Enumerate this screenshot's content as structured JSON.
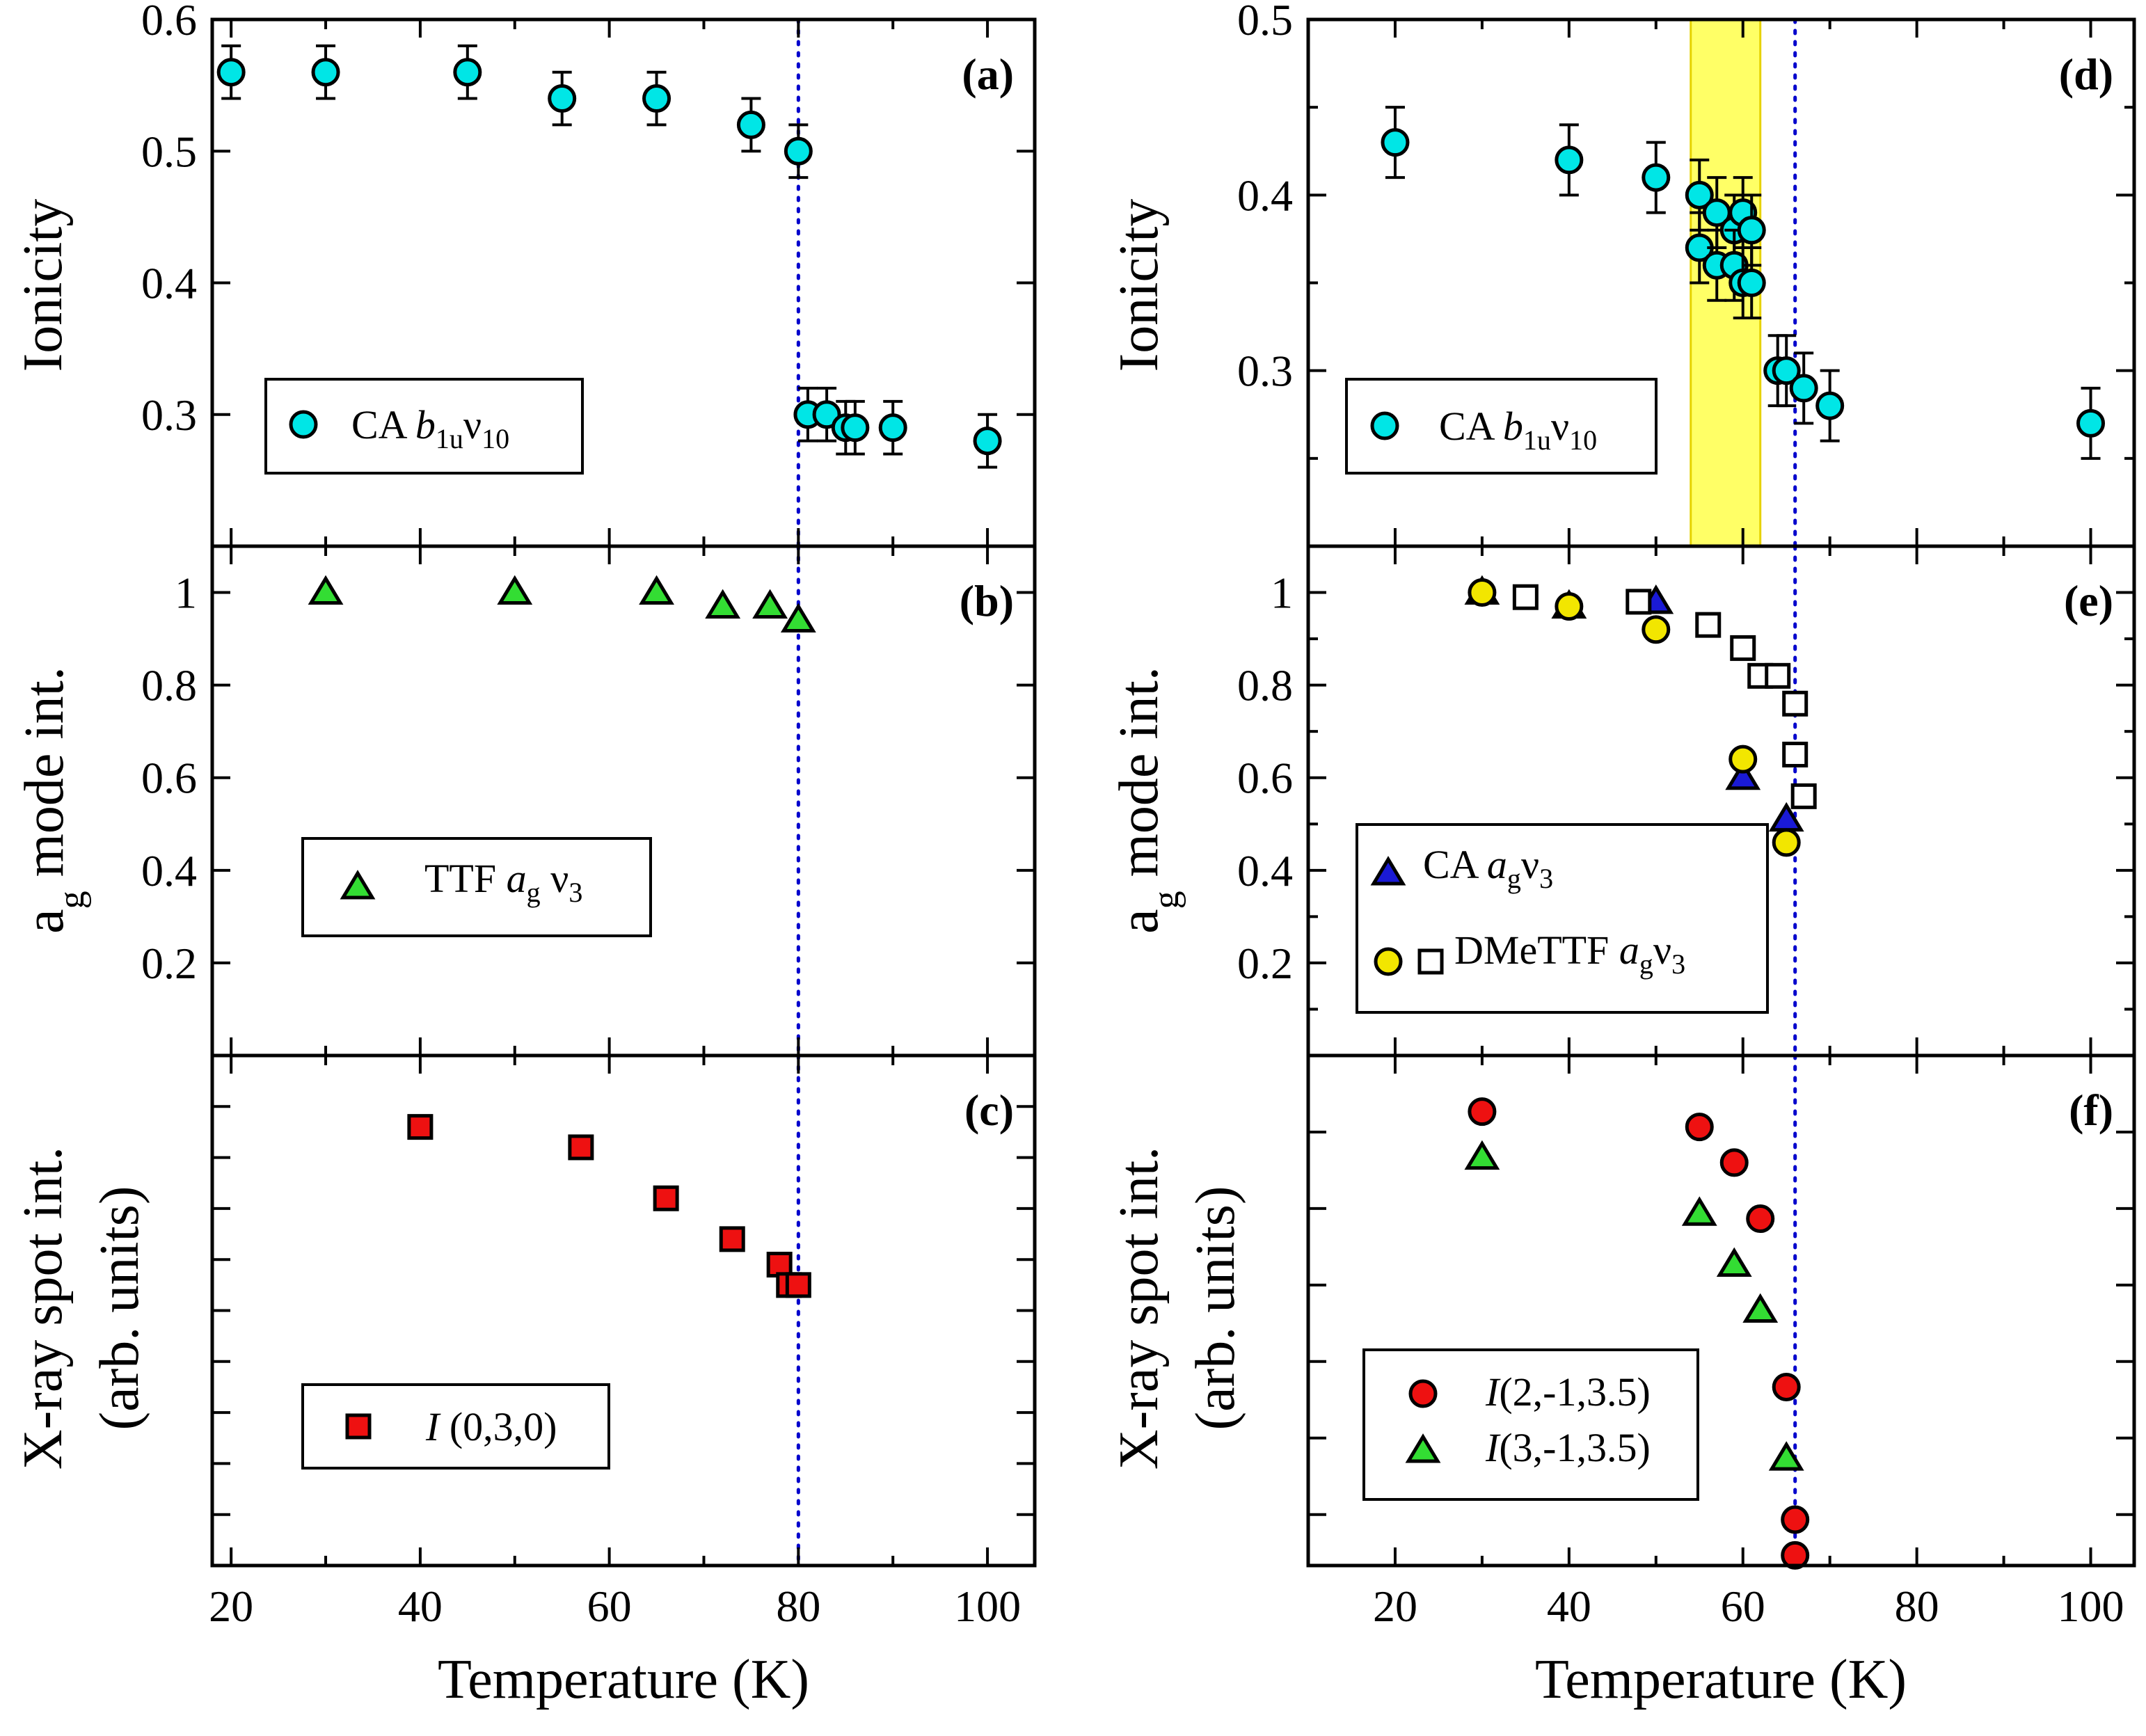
{
  "figure": {
    "xlabel": "Temperature (K)",
    "ylabels": {
      "ionicity": "Ionicity",
      "ag_main": "a",
      "ag_sub": "g",
      "ag_rest": " mode int.",
      "xray_line1": "X-ray spot int.",
      "xray_line2": "(arb. units)"
    },
    "legend_text": {
      "a": {
        "pre": "CA ",
        "ital": "b",
        "sub": "1u",
        "nu": "ν",
        "nusub": "10"
      },
      "b": {
        "pre": "TTF ",
        "ital": "a",
        "sub": "g",
        "nu": " ν",
        "nusub": "3"
      },
      "c": {
        "ital": "I",
        "post": " (0,3,0)"
      },
      "d": {
        "pre": "CA ",
        "ital": "b",
        "sub": "1u",
        "nu": "ν",
        "nusub": "10"
      },
      "e1": {
        "pre": "CA ",
        "ital": "a",
        "sub": "g",
        "nu": "ν",
        "nusub": "3"
      },
      "e2": {
        "pre": "DMeTTF ",
        "ital": "a",
        "sub": "g",
        "nu": "ν",
        "nusub": "3"
      },
      "f1": {
        "ital": "I",
        "post": "(2,-1,3.5)"
      },
      "f2": {
        "ital": "I",
        "post": "(3,-1,3.5)"
      }
    },
    "colors": {
      "cyan": "#00e6e6",
      "green": "#33dd33",
      "red": "#ee1111",
      "yellow": "#f2e600",
      "blue": "#1a1ad6",
      "band": "#ffff66",
      "vline": "#0000cc"
    }
  },
  "chart_data": [
    {
      "id": "a",
      "panel_label": "(a)",
      "type": "scatter",
      "ylabel": "Ionicity",
      "xlim": [
        18,
        105
      ],
      "ylim": [
        0.2,
        0.6
      ],
      "yticks": [
        0.3,
        0.4,
        0.5,
        0.6
      ],
      "yticklabels": [
        "0.3",
        "0.4",
        "0.5",
        "0.6"
      ],
      "xticks": [
        20,
        40,
        60,
        80,
        100
      ],
      "xticklabels": [],
      "vline": 80,
      "series": [
        {
          "name": "CA b1u ν10",
          "marker": "circle",
          "color": "#00e6e6",
          "x": [
            20,
            30,
            45,
            55,
            65,
            75,
            80,
            81,
            83,
            85,
            86,
            90,
            100
          ],
          "y": [
            0.56,
            0.56,
            0.56,
            0.54,
            0.54,
            0.52,
            0.5,
            0.3,
            0.3,
            0.29,
            0.29,
            0.29,
            0.28
          ],
          "err": 0.02
        }
      ]
    },
    {
      "id": "b",
      "panel_label": "(b)",
      "type": "scatter",
      "ylabel": "ag mode int.",
      "xlim": [
        18,
        105
      ],
      "ylim": [
        0.0,
        1.1
      ],
      "yticks": [
        0.2,
        0.4,
        0.6,
        0.8,
        1.0
      ],
      "yticklabels": [
        "0.2",
        "0.4",
        "0.6",
        "0.8",
        "1"
      ],
      "xticks": [
        20,
        40,
        60,
        80,
        100
      ],
      "xticklabels": [],
      "vline": 80,
      "series": [
        {
          "name": "TTF ag ν3",
          "marker": "triangle",
          "color": "#33dd33",
          "x": [
            30,
            50,
            65,
            72,
            77,
            80
          ],
          "y": [
            1.0,
            1.0,
            1.0,
            0.97,
            0.97,
            0.94
          ]
        }
      ]
    },
    {
      "id": "c",
      "panel_label": "(c)",
      "type": "scatter",
      "ylabel": "X-ray spot int. (arb. units)",
      "xlim": [
        18,
        105
      ],
      "ylim": [
        0,
        1
      ],
      "yticks": [
        0.1,
        0.2,
        0.3,
        0.4,
        0.5,
        0.6,
        0.7,
        0.8,
        0.9
      ],
      "yticklabels": [],
      "xticks": [
        20,
        40,
        60,
        80,
        100
      ],
      "xticklabels": [
        "20",
        "40",
        "60",
        "80",
        "100"
      ],
      "vline": 80,
      "series": [
        {
          "name": "I (0,3,0)",
          "marker": "square",
          "color": "#ee1111",
          "x": [
            40,
            57,
            66,
            73,
            78,
            79,
            80
          ],
          "y": [
            0.86,
            0.82,
            0.72,
            0.64,
            0.59,
            0.55,
            0.55
          ]
        }
      ]
    },
    {
      "id": "d",
      "panel_label": "(d)",
      "type": "scatter",
      "ylabel": "Ionicity",
      "xlim": [
        10,
        105
      ],
      "ylim": [
        0.2,
        0.5
      ],
      "yticks": [
        0.3,
        0.4,
        0.5
      ],
      "yticklabels": [
        "0.3",
        "0.4",
        "0.5"
      ],
      "minor_yticks": [
        0.25,
        0.35,
        0.45
      ],
      "xticks": [
        20,
        40,
        60,
        80,
        100
      ],
      "xticklabels": [],
      "vline": 66,
      "band": [
        54,
        62
      ],
      "series": [
        {
          "name": "CA b1u ν10",
          "marker": "circle",
          "color": "#00e6e6",
          "x": [
            20,
            40,
            50,
            55,
            55,
            57,
            57,
            59,
            59,
            60,
            60,
            61,
            61,
            64,
            65,
            67,
            70,
            100
          ],
          "y": [
            0.43,
            0.42,
            0.41,
            0.4,
            0.37,
            0.39,
            0.36,
            0.38,
            0.36,
            0.39,
            0.35,
            0.38,
            0.35,
            0.3,
            0.3,
            0.29,
            0.28,
            0.27
          ],
          "err": 0.02
        }
      ]
    },
    {
      "id": "e",
      "panel_label": "(e)",
      "type": "scatter",
      "ylabel": "ag mode int.",
      "xlim": [
        10,
        105
      ],
      "ylim": [
        0.0,
        1.1
      ],
      "yticks": [
        0.2,
        0.4,
        0.6,
        0.8,
        1.0
      ],
      "yticklabels": [
        "0.2",
        "0.4",
        "0.6",
        "0.8",
        "1"
      ],
      "minor_yticks": [
        0.1,
        0.3,
        0.5,
        0.7,
        0.9
      ],
      "xticks": [
        20,
        40,
        60,
        80,
        100
      ],
      "xticklabels": [],
      "vline": 66,
      "series": [
        {
          "name": "CA ag ν3",
          "marker": "triangle",
          "color": "#1a1ad6",
          "x": [
            30,
            40,
            50,
            60,
            65
          ],
          "y": [
            1.0,
            0.97,
            0.98,
            0.6,
            0.51
          ]
        },
        {
          "name": "DMeTTF ag ν3 (circles)",
          "marker": "circle",
          "color": "#f2e600",
          "x": [
            30,
            40,
            50,
            60,
            65
          ],
          "y": [
            1.0,
            0.97,
            0.92,
            0.64,
            0.46
          ]
        },
        {
          "name": "DMeTTF ag ν3 (squares)",
          "marker": "open-square",
          "color": "#ffffff",
          "x": [
            35,
            48,
            56,
            60,
            62,
            64,
            66,
            66,
            67
          ],
          "y": [
            0.99,
            0.98,
            0.93,
            0.88,
            0.82,
            0.82,
            0.76,
            0.65,
            0.56
          ]
        }
      ]
    },
    {
      "id": "f",
      "panel_label": "(f)",
      "type": "scatter",
      "ylabel": "X-ray spot int. (arb. units)",
      "xlim": [
        10,
        105
      ],
      "ylim": [
        0,
        1
      ],
      "yticks": [
        0.1,
        0.25,
        0.4,
        0.55,
        0.7,
        0.85
      ],
      "yticklabels": [],
      "xticks": [
        20,
        40,
        60,
        80,
        100
      ],
      "xticklabels": [
        "20",
        "40",
        "60",
        "80",
        "100"
      ],
      "vline": 66,
      "series": [
        {
          "name": "I(2,-1,3.5)",
          "marker": "circle",
          "color": "#ee1111",
          "x": [
            30,
            55,
            59,
            62,
            65,
            66,
            66
          ],
          "y": [
            0.89,
            0.86,
            0.79,
            0.68,
            0.35,
            0.09,
            0.02
          ]
        },
        {
          "name": "I(3,-1,3.5)",
          "marker": "triangle",
          "color": "#33dd33",
          "x": [
            30,
            55,
            59,
            62,
            65
          ],
          "y": [
            0.8,
            0.69,
            0.59,
            0.5,
            0.21
          ]
        }
      ]
    }
  ]
}
